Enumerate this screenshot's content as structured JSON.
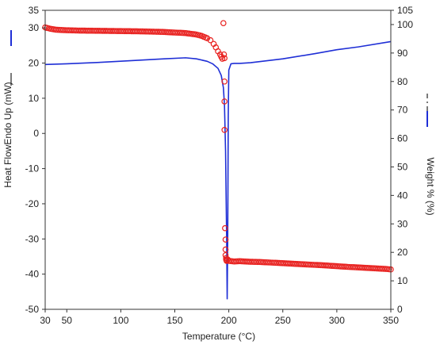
{
  "chart_data": {
    "type": "line",
    "xlabel": "Temperature (°C)",
    "ylabel_left": "Heat FlowEndo Up (mW)",
    "ylabel_right": "Weight % (%)",
    "xlim": [
      30,
      350
    ],
    "ylim_left": [
      -50,
      35
    ],
    "ylim_right": [
      0,
      105
    ],
    "x_ticks": [
      30,
      50,
      100,
      150,
      200,
      250,
      300,
      350
    ],
    "y_ticks_left": [
      -50,
      -40,
      -30,
      -20,
      -10,
      0,
      10,
      20,
      30,
      35
    ],
    "y_ticks_right": [
      0,
      10,
      20,
      30,
      40,
      50,
      60,
      70,
      80,
      90,
      100,
      105
    ],
    "grid": false,
    "legend": "left and right axis titles carry line samples",
    "series": [
      {
        "axis": "left",
        "color": "#1f2fd6",
        "style": "line",
        "x": [
          30,
          50,
          80,
          110,
          140,
          160,
          170,
          180,
          185,
          190,
          193,
          195,
          196,
          197,
          198,
          198.5,
          199,
          199.5,
          200,
          202,
          205,
          210,
          220,
          250,
          280,
          300,
          320,
          350
        ],
        "y": [
          19.6,
          19.8,
          20.2,
          20.7,
          21.2,
          21.5,
          21.2,
          20.5,
          19.8,
          18.5,
          16.5,
          13.0,
          8.0,
          -5.0,
          -30.0,
          -47.0,
          -30.0,
          5.0,
          18.0,
          19.8,
          19.9,
          19.9,
          20.1,
          21.2,
          22.7,
          23.8,
          24.6,
          26.1
        ]
      },
      {
        "axis": "right",
        "color": "#e8201e",
        "style": "markers",
        "marker": "circle-open",
        "x": [
          30,
          35,
          40,
          50,
          60,
          80,
          100,
          120,
          140,
          160,
          170,
          175,
          180,
          183,
          186,
          188,
          190,
          192,
          193,
          194,
          195,
          195.5,
          196,
          196,
          196,
          196,
          196.5,
          197,
          197,
          197,
          197.5,
          197.5,
          198,
          198,
          199,
          200,
          205,
          210,
          220,
          230,
          250,
          270,
          290,
          310,
          330,
          345,
          350
        ],
        "y": [
          99.0,
          98.5,
          98.2,
          98.0,
          97.9,
          97.8,
          97.7,
          97.6,
          97.4,
          97.0,
          96.5,
          96.0,
          95.2,
          94.5,
          93.2,
          92.0,
          90.6,
          89.5,
          88.7,
          88.0,
          100.5,
          89.5,
          88.2,
          80.0,
          73.0,
          63.0,
          28.5,
          24.5,
          21.0,
          19.0,
          18.0,
          17.5,
          17.2,
          17.0,
          17.5,
          17.0,
          16.8,
          16.9,
          16.7,
          16.6,
          16.2,
          15.8,
          15.4,
          14.9,
          14.5,
          14.2,
          14.0
        ]
      }
    ]
  }
}
